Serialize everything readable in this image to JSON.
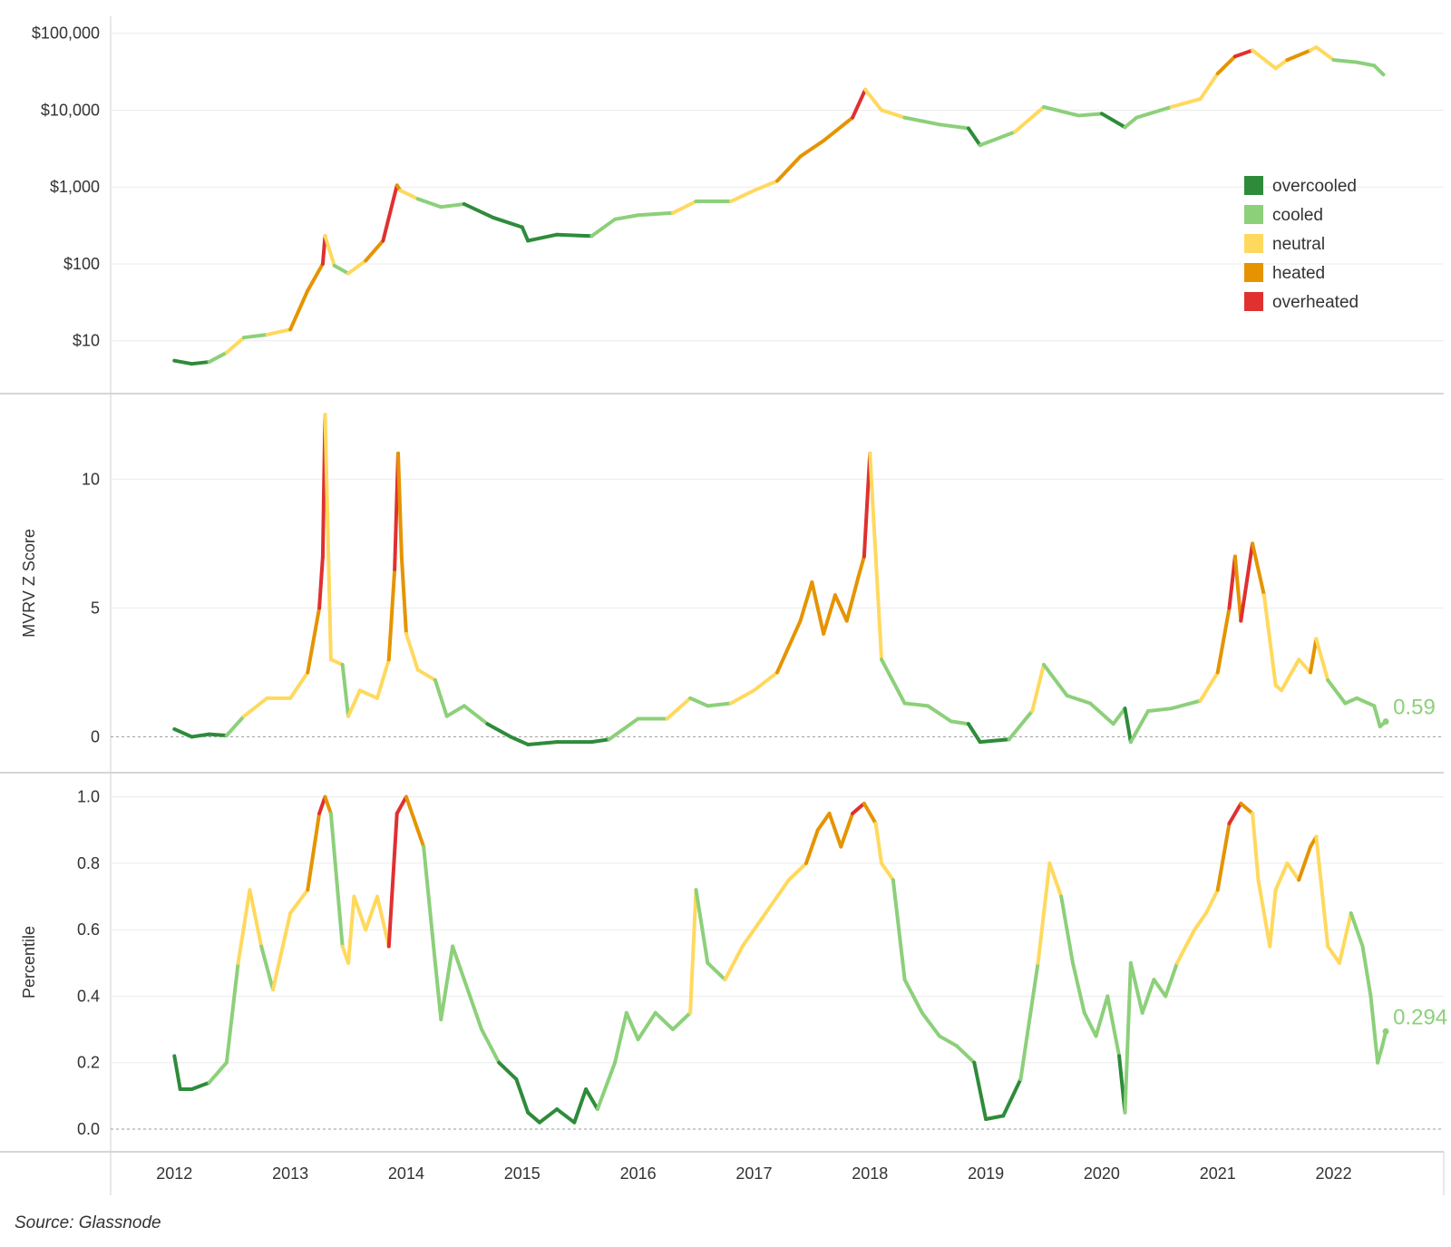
{
  "source_note": "Source: Glassnode",
  "legend": {
    "items": [
      {
        "label": "overcooled",
        "color": "#2e8b3a"
      },
      {
        "label": "cooled",
        "color": "#8cd07a"
      },
      {
        "label": "neutral",
        "color": "#ffd95e"
      },
      {
        "label": "heated",
        "color": "#e59400"
      },
      {
        "label": "overheated",
        "color": "#e03030"
      }
    ]
  },
  "chart_data": [
    {
      "type": "line",
      "scale": "log",
      "xlabel": "",
      "ylabel": "",
      "yticks": [
        10,
        100,
        1000,
        10000,
        100000
      ],
      "ytick_labels": [
        "$10",
        "$100",
        "$1,000",
        "$10,000",
        "$100,000"
      ],
      "x": [
        2012.0,
        2012.15,
        2012.3,
        2012.45,
        2012.6,
        2012.8,
        2013.0,
        2013.15,
        2013.28,
        2013.3,
        2013.38,
        2013.5,
        2013.65,
        2013.8,
        2013.92,
        2013.95,
        2014.1,
        2014.3,
        2014.5,
        2014.75,
        2015.0,
        2015.05,
        2015.3,
        2015.6,
        2015.8,
        2016.0,
        2016.3,
        2016.5,
        2016.8,
        2017.0,
        2017.2,
        2017.4,
        2017.6,
        2017.85,
        2017.96,
        2018.1,
        2018.3,
        2018.6,
        2018.85,
        2018.95,
        2019.25,
        2019.5,
        2019.8,
        2020.0,
        2020.2,
        2020.3,
        2020.6,
        2020.85,
        2021.0,
        2021.15,
        2021.3,
        2021.5,
        2021.6,
        2021.8,
        2021.85,
        2022.0,
        2022.2,
        2022.35,
        2022.43
      ],
      "y": [
        5.5,
        5,
        5.3,
        7,
        11,
        12,
        14,
        45,
        100,
        230,
        95,
        75,
        110,
        200,
        1050,
        900,
        700,
        550,
        600,
        400,
        300,
        200,
        240,
        230,
        380,
        430,
        460,
        650,
        650,
        900,
        1200,
        2500,
        4000,
        8000,
        18500,
        10000,
        8000,
        6500,
        5800,
        3500,
        5200,
        11000,
        8500,
        9000,
        6000,
        8000,
        11000,
        14000,
        30000,
        50000,
        60000,
        35000,
        45000,
        60000,
        66000,
        45000,
        42000,
        38000,
        29000
      ],
      "colors": [
        "cooled",
        "overcooled",
        "overcooled",
        "cooled",
        "neutral",
        "cooled",
        "neutral",
        "heated",
        "heated",
        "overheated",
        "neutral",
        "cooled",
        "neutral",
        "heated",
        "overheated",
        "heated",
        "neutral",
        "cooled",
        "cooled",
        "overcooled",
        "overcooled",
        "overcooled",
        "overcooled",
        "overcooled",
        "cooled",
        "cooled",
        "cooled",
        "neutral",
        "cooled",
        "neutral",
        "neutral",
        "heated",
        "heated",
        "heated",
        "overheated",
        "neutral",
        "neutral",
        "cooled",
        "cooled",
        "overcooled",
        "cooled",
        "neutral",
        "cooled",
        "cooled",
        "overcooled",
        "cooled",
        "cooled",
        "neutral",
        "neutral",
        "heated",
        "overheated",
        "neutral",
        "neutral",
        "heated",
        "neutral",
        "neutral",
        "cooled",
        "cooled",
        "cooled"
      ],
      "ylim": [
        3,
        120000
      ]
    },
    {
      "type": "line",
      "xlabel": "",
      "ylabel": "MVRV Z Score",
      "yticks": [
        0,
        5,
        10
      ],
      "ytick_labels": [
        "0",
        "5",
        "10"
      ],
      "end_label": "0.59",
      "x": [
        2012.0,
        2012.15,
        2012.3,
        2012.45,
        2012.6,
        2012.8,
        2013.0,
        2013.15,
        2013.25,
        2013.28,
        2013.3,
        2013.35,
        2013.45,
        2013.5,
        2013.6,
        2013.75,
        2013.85,
        2013.9,
        2013.93,
        2013.96,
        2014.0,
        2014.1,
        2014.25,
        2014.35,
        2014.5,
        2014.7,
        2014.9,
        2015.05,
        2015.3,
        2015.6,
        2015.75,
        2016.0,
        2016.25,
        2016.45,
        2016.6,
        2016.8,
        2017.0,
        2017.2,
        2017.4,
        2017.5,
        2017.6,
        2017.7,
        2017.8,
        2017.9,
        2017.95,
        2018.0,
        2018.1,
        2018.3,
        2018.5,
        2018.7,
        2018.85,
        2018.95,
        2019.2,
        2019.4,
        2019.5,
        2019.7,
        2019.9,
        2020.1,
        2020.2,
        2020.25,
        2020.4,
        2020.6,
        2020.85,
        2021.0,
        2021.1,
        2021.15,
        2021.2,
        2021.3,
        2021.4,
        2021.5,
        2021.55,
        2021.7,
        2021.8,
        2021.85,
        2021.95,
        2022.1,
        2022.2,
        2022.35,
        2022.4,
        2022.45
      ],
      "y": [
        0.3,
        0.0,
        0.1,
        0.05,
        0.8,
        1.5,
        1.5,
        2.5,
        5.0,
        7.0,
        12.5,
        3.0,
        2.8,
        0.8,
        1.8,
        1.5,
        3.0,
        6.5,
        11.0,
        7.0,
        4.0,
        2.6,
        2.2,
        0.8,
        1.2,
        0.5,
        0.0,
        -0.3,
        -0.2,
        -0.2,
        -0.1,
        0.7,
        0.7,
        1.5,
        1.2,
        1.3,
        1.8,
        2.5,
        4.5,
        6.0,
        4.0,
        5.5,
        4.5,
        6.2,
        7.0,
        11.0,
        3.0,
        1.3,
        1.2,
        0.6,
        0.5,
        -0.2,
        -0.1,
        1.0,
        2.8,
        1.6,
        1.3,
        0.5,
        1.1,
        -0.2,
        1.0,
        1.1,
        1.4,
        2.5,
        5.0,
        7.0,
        4.5,
        7.5,
        5.5,
        2.0,
        1.8,
        3.0,
        2.5,
        3.8,
        2.2,
        1.3,
        1.5,
        1.2,
        0.4,
        0.59
      ],
      "colors": [
        "cooled",
        "overcooled",
        "overcooled",
        "overcooled",
        "cooled",
        "neutral",
        "neutral",
        "neutral",
        "heated",
        "overheated",
        "overheated",
        "neutral",
        "neutral",
        "cooled",
        "neutral",
        "neutral",
        "neutral",
        "heated",
        "overheated",
        "heated",
        "heated",
        "neutral",
        "neutral",
        "cooled",
        "cooled",
        "cooled",
        "overcooled",
        "overcooled",
        "overcooled",
        "overcooled",
        "overcooled",
        "cooled",
        "cooled",
        "neutral",
        "cooled",
        "cooled",
        "neutral",
        "neutral",
        "heated",
        "heated",
        "heated",
        "heated",
        "heated",
        "heated",
        "heated",
        "overheated",
        "neutral",
        "cooled",
        "cooled",
        "cooled",
        "cooled",
        "overcooled",
        "overcooled",
        "cooled",
        "neutral",
        "cooled",
        "cooled",
        "cooled",
        "cooled",
        "overcooled",
        "cooled",
        "cooled",
        "cooled",
        "neutral",
        "heated",
        "overheated",
        "heated",
        "overheated",
        "heated",
        "neutral",
        "neutral",
        "neutral",
        "neutral",
        "heated",
        "neutral",
        "cooled",
        "cooled",
        "cooled",
        "cooled",
        "cooled"
      ],
      "ylim": [
        -0.9,
        12.9
      ]
    },
    {
      "type": "line",
      "xlabel": "",
      "ylabel": "Percentile",
      "yticks": [
        0.0,
        0.2,
        0.4,
        0.6,
        0.8,
        1.0
      ],
      "ytick_labels": [
        "0.0",
        "0.2",
        "0.4",
        "0.6",
        "0.8",
        "1.0"
      ],
      "end_label": "0.294",
      "x": [
        2012.0,
        2012.05,
        2012.15,
        2012.3,
        2012.45,
        2012.55,
        2012.65,
        2012.75,
        2012.85,
        2013.0,
        2013.15,
        2013.25,
        2013.3,
        2013.35,
        2013.45,
        2013.5,
        2013.55,
        2013.65,
        2013.75,
        2013.85,
        2013.92,
        2014.0,
        2014.15,
        2014.25,
        2014.3,
        2014.4,
        2014.5,
        2014.65,
        2014.8,
        2014.95,
        2015.05,
        2015.15,
        2015.3,
        2015.45,
        2015.55,
        2015.65,
        2015.8,
        2015.9,
        2016.0,
        2016.15,
        2016.3,
        2016.45,
        2016.5,
        2016.6,
        2016.75,
        2016.9,
        2017.1,
        2017.3,
        2017.45,
        2017.55,
        2017.65,
        2017.75,
        2017.85,
        2017.95,
        2018.05,
        2018.1,
        2018.2,
        2018.3,
        2018.45,
        2018.6,
        2018.75,
        2018.9,
        2019.0,
        2019.15,
        2019.3,
        2019.45,
        2019.55,
        2019.65,
        2019.75,
        2019.85,
        2019.95,
        2020.05,
        2020.15,
        2020.2,
        2020.25,
        2020.35,
        2020.45,
        2020.55,
        2020.65,
        2020.8,
        2020.9,
        2021.0,
        2021.1,
        2021.2,
        2021.3,
        2021.35,
        2021.45,
        2021.5,
        2021.6,
        2021.7,
        2021.8,
        2021.85,
        2021.95,
        2022.05,
        2022.15,
        2022.25,
        2022.32,
        2022.38,
        2022.42,
        2022.45
      ],
      "y": [
        0.22,
        0.12,
        0.12,
        0.14,
        0.2,
        0.5,
        0.72,
        0.55,
        0.42,
        0.65,
        0.72,
        0.95,
        1.0,
        0.95,
        0.55,
        0.5,
        0.7,
        0.6,
        0.7,
        0.55,
        0.95,
        1.0,
        0.85,
        0.5,
        0.33,
        0.55,
        0.45,
        0.3,
        0.2,
        0.15,
        0.05,
        0.02,
        0.06,
        0.02,
        0.12,
        0.06,
        0.2,
        0.35,
        0.27,
        0.35,
        0.3,
        0.35,
        0.72,
        0.5,
        0.45,
        0.55,
        0.65,
        0.75,
        0.8,
        0.9,
        0.95,
        0.85,
        0.95,
        0.98,
        0.92,
        0.8,
        0.75,
        0.45,
        0.35,
        0.28,
        0.25,
        0.2,
        0.03,
        0.04,
        0.15,
        0.5,
        0.8,
        0.7,
        0.5,
        0.35,
        0.28,
        0.4,
        0.22,
        0.05,
        0.5,
        0.35,
        0.45,
        0.4,
        0.5,
        0.6,
        0.65,
        0.72,
        0.92,
        0.98,
        0.95,
        0.75,
        0.55,
        0.72,
        0.8,
        0.75,
        0.85,
        0.88,
        0.55,
        0.5,
        0.65,
        0.55,
        0.4,
        0.2,
        0.25,
        0.294
      ],
      "colors": [
        "cooled",
        "overcooled",
        "overcooled",
        "overcooled",
        "cooled",
        "cooled",
        "neutral",
        "neutral",
        "cooled",
        "neutral",
        "neutral",
        "heated",
        "overheated",
        "heated",
        "cooled",
        "neutral",
        "neutral",
        "neutral",
        "neutral",
        "neutral",
        "overheated",
        "overheated",
        "heated",
        "cooled",
        "cooled",
        "cooled",
        "cooled",
        "cooled",
        "cooled",
        "overcooled",
        "overcooled",
        "overcooled",
        "overcooled",
        "overcooled",
        "overcooled",
        "overcooled",
        "cooled",
        "cooled",
        "cooled",
        "cooled",
        "cooled",
        "cooled",
        "neutral",
        "cooled",
        "cooled",
        "neutral",
        "neutral",
        "neutral",
        "neutral",
        "heated",
        "heated",
        "heated",
        "heated",
        "overheated",
        "heated",
        "neutral",
        "neutral",
        "cooled",
        "cooled",
        "cooled",
        "cooled",
        "cooled",
        "overcooled",
        "overcooled",
        "overcooled",
        "cooled",
        "neutral",
        "neutral",
        "cooled",
        "cooled",
        "cooled",
        "cooled",
        "cooled",
        "overcooled",
        "cooled",
        "cooled",
        "cooled",
        "cooled",
        "cooled",
        "neutral",
        "neutral",
        "neutral",
        "heated",
        "overheated",
        "heated",
        "neutral",
        "neutral",
        "neutral",
        "neutral",
        "neutral",
        "heated",
        "heated",
        "neutral",
        "neutral",
        "neutral",
        "cooled",
        "cooled",
        "cooled",
        "cooled",
        "cooled"
      ],
      "ylim": [
        -0.03,
        1.04
      ]
    }
  ],
  "x_axis": {
    "ticks": [
      2012,
      2013,
      2014,
      2015,
      2016,
      2017,
      2018,
      2019,
      2020,
      2021,
      2022
    ],
    "tick_labels": [
      "2012",
      "2013",
      "2014",
      "2015",
      "2016",
      "2017",
      "2018",
      "2019",
      "2020",
      "2021",
      "2022"
    ],
    "xlim": [
      2011.45,
      2022.95
    ]
  }
}
